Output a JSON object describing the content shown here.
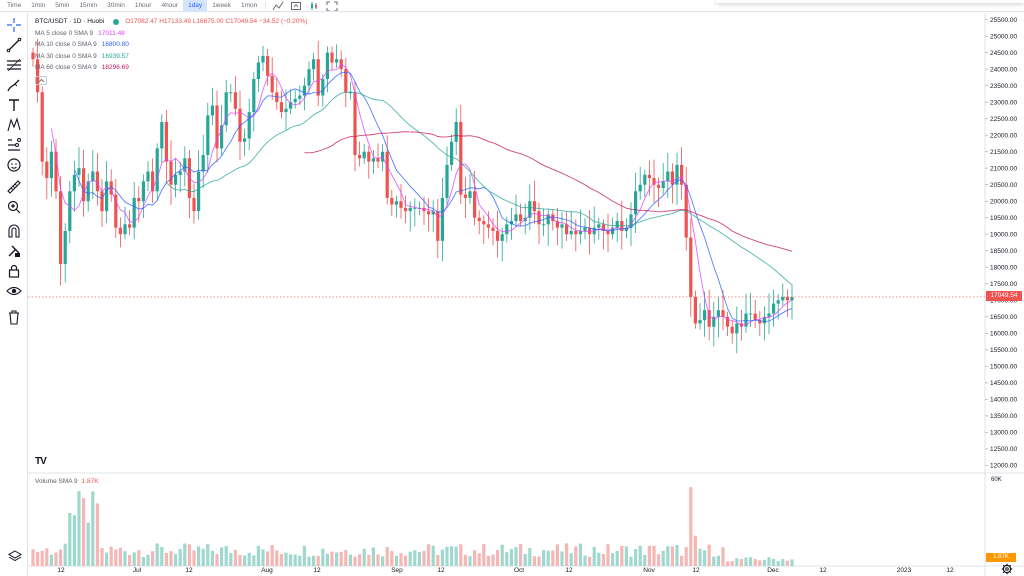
{
  "toolbar": {
    "timeframes": [
      "Time",
      "1min",
      "5min",
      "15min",
      "30min",
      "1hour",
      "4hour",
      "1day",
      "1week",
      "1mon"
    ],
    "active_timeframe": "1day"
  },
  "legend": {
    "symbol": "BTC/USDT · 1D · Huobi",
    "ohlc": "O17082.47 H17133.49 L16875.00 C17049.54 −34.52 (−0.20%)",
    "ma": [
      {
        "name": "MA 5 close 0 SMA 9",
        "value": "17011.48",
        "color": "#e040fb"
      },
      {
        "name": "MA 10 close 0 SMA 9",
        "value": "16800.80",
        "color": "#2962ff"
      },
      {
        "name": "MA 30 close 0 SMA 9",
        "value": "16939.57",
        "color": "#26a69a"
      },
      {
        "name": "MA 60 close 0 SMA 9",
        "value": "18296.69",
        "color": "#c2185b"
      }
    ]
  },
  "volume_legend": {
    "name": "Volume SMA 9",
    "value": "1.87K"
  },
  "price_axis": [
    "25500.00",
    "25000.00",
    "24500.00",
    "24000.00",
    "23500.00",
    "23000.00",
    "22500.00",
    "22000.00",
    "21500.00",
    "21000.00",
    "20500.00",
    "20000.00",
    "19500.00",
    "19000.00",
    "18500.00",
    "18000.00",
    "17500.00",
    "17000.00",
    "16500.00",
    "16000.00",
    "15500.00",
    "15000.00",
    "14500.00",
    "14000.00",
    "13500.00",
    "13000.00",
    "12500.00",
    "12000.00"
  ],
  "current_price": "17049.54",
  "volume_axis_top": "60K",
  "volume_current": "1.87K",
  "time_axis": [
    "12",
    "Jul",
    "12",
    "Aug",
    "12",
    "Sep",
    "12",
    "Oct",
    "12",
    "Nov",
    "12",
    "Dec",
    "12",
    "2023",
    "12"
  ],
  "colors": {
    "up": "#26a69a",
    "down": "#ef5350",
    "up_vol": "#9fd8cf",
    "down_vol": "#f5b7b5"
  },
  "icons": [
    "crosshair-icon",
    "trendline-icon",
    "fib-icon",
    "brush-icon",
    "text-icon",
    "pattern-icon",
    "forecast-icon",
    "emoji-icon",
    "ruler-icon",
    "zoom-in-icon",
    "magnet-icon",
    "lock-drawings-icon",
    "lock-icon",
    "eye-icon",
    "trash-icon"
  ],
  "chart_data": {
    "type": "candlestick",
    "title": "BTC/USDT · 1D · Huobi",
    "ylim": [
      11800,
      25700
    ],
    "closes": [
      24300,
      23300,
      21200,
      20700,
      21500,
      20300,
      18100,
      19100,
      20300,
      20800,
      21000,
      20000,
      20600,
      20900,
      20300,
      19700,
      20600,
      20200,
      19200,
      19000,
      19300,
      19200,
      20100,
      20000,
      20600,
      20900,
      20300,
      21600,
      22400,
      21200,
      20500,
      20800,
      20900,
      21300,
      20100,
      19700,
      20900,
      21400,
      22600,
      22900,
      21600,
      22300,
      23300,
      23300,
      22800,
      21800,
      21900,
      22700,
      23700,
      24200,
      24400,
      23800,
      23300,
      23000,
      22700,
      22800,
      23000,
      23100,
      23200,
      23500,
      24000,
      24300,
      23200,
      23700,
      24500,
      24200,
      24300,
      24000,
      23300,
      23300,
      21400,
      21300,
      21500,
      21200,
      21300,
      21200,
      21500,
      20100,
      19900,
      20000,
      19800,
      19700,
      19800,
      19800,
      19800,
      19700,
      19600,
      19700,
      18800,
      20100,
      21100,
      21800,
      22400,
      20200,
      20100,
      20300,
      19500,
      19400,
      19300,
      19200,
      19100,
      18800,
      19000,
      19300,
      19400,
      19600,
      19400,
      19500,
      20000,
      19700,
      19300,
      19300,
      19600,
      19400,
      19200,
      19300,
      19000,
      19100,
      19000,
      19100,
      19200,
      19000,
      19200,
      19300,
      19100,
      19000,
      19200,
      19400,
      19100,
      19200,
      19600,
      20300,
      20500,
      20800,
      20700,
      20500,
      20400,
      20600,
      20900,
      20500,
      21100,
      20500,
      18900,
      17100,
      16300,
      16400,
      16700,
      16200,
      16500,
      16700,
      16500,
      16200,
      16000,
      16300,
      16200,
      16600,
      16600,
      16400,
      16300,
      16500,
      16600,
      16900,
      17000,
      17100,
      17000,
      17100
    ],
    "series": [
      {
        "name": "MA 5 close 0 SMA 9",
        "color": "#e040fb",
        "last": 17011.48
      },
      {
        "name": "MA 10 close 0 SMA 9",
        "color": "#2962ff",
        "last": 16800.8
      },
      {
        "name": "MA 30 close 0 SMA 9",
        "color": "#26a69a",
        "last": 16939.57
      },
      {
        "name": "MA 60 close 0 SMA 9",
        "color": "#c2185b",
        "last": 18296.69
      }
    ],
    "volume_max": 60000
  }
}
